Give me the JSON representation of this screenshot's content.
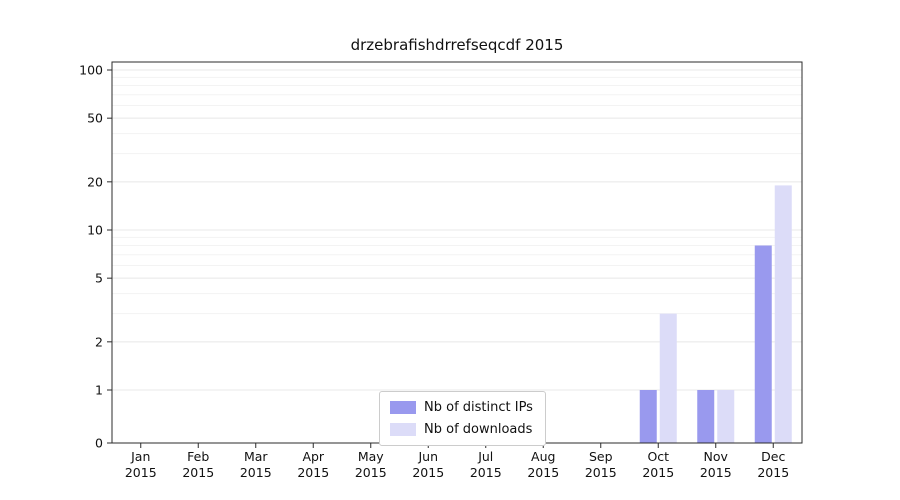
{
  "chart_data": {
    "type": "bar",
    "title": "drzebrafishdrrefseqcdf 2015",
    "categories": [
      "Jan",
      "Feb",
      "Mar",
      "Apr",
      "May",
      "Jun",
      "Jul",
      "Aug",
      "Sep",
      "Oct",
      "Nov",
      "Dec"
    ],
    "year_label": "2015",
    "series": [
      {
        "name": "Nb of distinct IPs",
        "color": "#9999ee",
        "values": [
          0,
          0,
          0,
          0,
          0,
          0,
          0,
          0,
          0,
          1,
          1,
          8
        ]
      },
      {
        "name": "Nb of downloads",
        "color": "#dcdcf8",
        "values": [
          0,
          0,
          0,
          0,
          0,
          0,
          0,
          0,
          0,
          3,
          1,
          19
        ]
      }
    ],
    "yticks": [
      0,
      1,
      2,
      5,
      10,
      20,
      50,
      100
    ],
    "minor_yticks": [
      3,
      4,
      6,
      7,
      8,
      9,
      30,
      40,
      60,
      70,
      80,
      90
    ],
    "scale": "symlog",
    "ylim": [
      0,
      112
    ],
    "grid": "horizontal",
    "legend_position": "lower center",
    "colors": {
      "axis": "#2b2b2b",
      "tick_label": "#111111",
      "major_grid": "#e8e8e8",
      "minor_grid": "#f3f3f3"
    }
  }
}
